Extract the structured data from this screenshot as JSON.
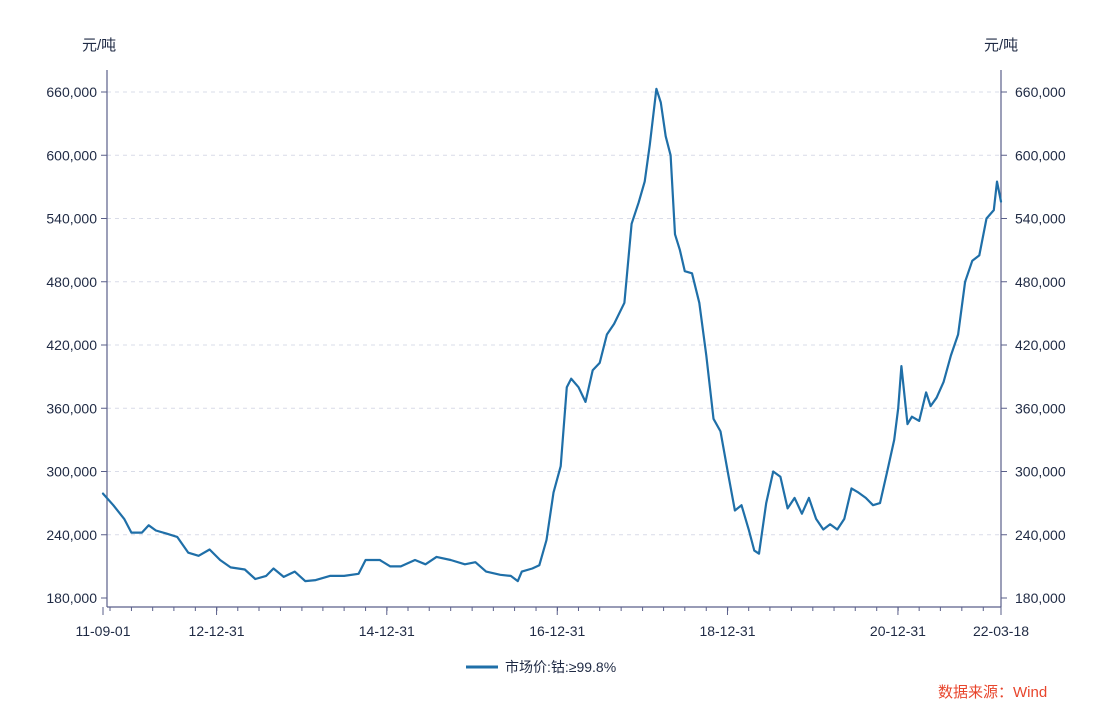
{
  "colors": {
    "series": "#1f6fa8",
    "axis": "#5a5f8a",
    "grid": "#d9dce8",
    "text": "#1f2a44",
    "source": "#e8452c"
  },
  "chart_data": {
    "type": "line",
    "title": "",
    "ylabel_left": "元/吨",
    "ylabel_right": "元/吨",
    "ylim": [
      175000,
      680000
    ],
    "y_ticks": [
      180000,
      240000,
      300000,
      360000,
      420000,
      480000,
      540000,
      600000,
      660000
    ],
    "y_tick_labels": [
      "180,000",
      "240,000",
      "300,000",
      "360,000",
      "420,000",
      "480,000",
      "540,000",
      "600,000",
      "660,000"
    ],
    "xlim": [
      "2011-09-01",
      "2022-03-18"
    ],
    "x_ticks": [
      "2011-09-01",
      "2012-12-31",
      "2014-12-31",
      "2016-12-31",
      "2018-12-31",
      "2020-12-31",
      "2022-03-18"
    ],
    "x_tick_labels": [
      "11-09-01",
      "12-12-31",
      "14-12-31",
      "16-12-31",
      "18-12-31",
      "20-12-31",
      "22-03-18"
    ],
    "grid": "horizontal-dashed",
    "legend": "bottom-center",
    "series": [
      {
        "name": "市场价:钴:≥99.8%",
        "points": [
          [
            "2011-09-01",
            279000
          ],
          [
            "2011-10-15",
            268000
          ],
          [
            "2011-12-01",
            255000
          ],
          [
            "2012-01-01",
            242000
          ],
          [
            "2012-02-15",
            242000
          ],
          [
            "2012-03-15",
            249000
          ],
          [
            "2012-04-15",
            244000
          ],
          [
            "2012-06-01",
            241000
          ],
          [
            "2012-07-15",
            238000
          ],
          [
            "2012-09-01",
            223000
          ],
          [
            "2012-10-15",
            220000
          ],
          [
            "2012-12-01",
            226000
          ],
          [
            "2013-01-15",
            216000
          ],
          [
            "2013-03-01",
            209000
          ],
          [
            "2013-05-01",
            207000
          ],
          [
            "2013-06-15",
            198000
          ],
          [
            "2013-08-01",
            201000
          ],
          [
            "2013-09-01",
            208000
          ],
          [
            "2013-10-15",
            200000
          ],
          [
            "2013-12-01",
            205000
          ],
          [
            "2014-01-15",
            196000
          ],
          [
            "2014-03-01",
            197000
          ],
          [
            "2014-05-01",
            201000
          ],
          [
            "2014-07-01",
            201000
          ],
          [
            "2014-09-01",
            203000
          ],
          [
            "2014-10-01",
            216000
          ],
          [
            "2014-12-01",
            216000
          ],
          [
            "2015-01-15",
            210000
          ],
          [
            "2015-03-01",
            210000
          ],
          [
            "2015-05-01",
            216000
          ],
          [
            "2015-06-15",
            212000
          ],
          [
            "2015-08-01",
            219000
          ],
          [
            "2015-10-01",
            216000
          ],
          [
            "2015-12-01",
            212000
          ],
          [
            "2016-01-15",
            214000
          ],
          [
            "2016-03-01",
            205000
          ],
          [
            "2016-05-01",
            202000
          ],
          [
            "2016-06-15",
            201000
          ],
          [
            "2016-07-15",
            196000
          ],
          [
            "2016-08-01",
            205000
          ],
          [
            "2016-09-15",
            208000
          ],
          [
            "2016-10-15",
            211000
          ],
          [
            "2016-11-15",
            235000
          ],
          [
            "2016-12-15",
            280000
          ],
          [
            "2017-01-15",
            305000
          ],
          [
            "2017-02-10",
            380000
          ],
          [
            "2017-03-01",
            388000
          ],
          [
            "2017-04-01",
            380000
          ],
          [
            "2017-05-01",
            366000
          ],
          [
            "2017-06-01",
            396000
          ],
          [
            "2017-07-01",
            403000
          ],
          [
            "2017-08-01",
            430000
          ],
          [
            "2017-09-01",
            440000
          ],
          [
            "2017-10-15",
            460000
          ],
          [
            "2017-11-15",
            535000
          ],
          [
            "2017-12-15",
            555000
          ],
          [
            "2018-01-10",
            575000
          ],
          [
            "2018-02-01",
            610000
          ],
          [
            "2018-03-01",
            663000
          ],
          [
            "2018-03-20",
            650000
          ],
          [
            "2018-04-10",
            618000
          ],
          [
            "2018-05-01",
            600000
          ],
          [
            "2018-05-20",
            525000
          ],
          [
            "2018-06-10",
            510000
          ],
          [
            "2018-07-01",
            490000
          ],
          [
            "2018-08-01",
            488000
          ],
          [
            "2018-09-01",
            460000
          ],
          [
            "2018-10-01",
            410000
          ],
          [
            "2018-11-01",
            350000
          ],
          [
            "2018-12-01",
            338000
          ],
          [
            "2019-01-01",
            300000
          ],
          [
            "2019-02-01",
            263000
          ],
          [
            "2019-03-01",
            268000
          ],
          [
            "2019-04-01",
            245000
          ],
          [
            "2019-04-25",
            225000
          ],
          [
            "2019-05-15",
            222000
          ],
          [
            "2019-06-15",
            270000
          ],
          [
            "2019-07-15",
            300000
          ],
          [
            "2019-08-15",
            295000
          ],
          [
            "2019-09-15",
            265000
          ],
          [
            "2019-10-15",
            275000
          ],
          [
            "2019-11-15",
            260000
          ],
          [
            "2019-12-15",
            275000
          ],
          [
            "2020-01-15",
            255000
          ],
          [
            "2020-02-15",
            245000
          ],
          [
            "2020-03-15",
            250000
          ],
          [
            "2020-04-15",
            245000
          ],
          [
            "2020-05-15",
            255000
          ],
          [
            "2020-06-15",
            284000
          ],
          [
            "2020-07-15",
            280000
          ],
          [
            "2020-08-15",
            275000
          ],
          [
            "2020-09-15",
            268000
          ],
          [
            "2020-10-15",
            270000
          ],
          [
            "2020-11-15",
            300000
          ],
          [
            "2020-12-15",
            330000
          ],
          [
            "2021-01-01",
            360000
          ],
          [
            "2021-01-15",
            400000
          ],
          [
            "2021-02-10",
            345000
          ],
          [
            "2021-03-01",
            352000
          ],
          [
            "2021-04-01",
            348000
          ],
          [
            "2021-05-01",
            375000
          ],
          [
            "2021-05-20",
            362000
          ],
          [
            "2021-06-15",
            370000
          ],
          [
            "2021-07-15",
            385000
          ],
          [
            "2021-08-15",
            410000
          ],
          [
            "2021-09-15",
            430000
          ],
          [
            "2021-10-15",
            480000
          ],
          [
            "2021-11-15",
            500000
          ],
          [
            "2021-12-15",
            505000
          ],
          [
            "2022-01-15",
            540000
          ],
          [
            "2022-02-15",
            548000
          ],
          [
            "2022-03-01",
            575000
          ],
          [
            "2022-03-18",
            556000
          ]
        ]
      }
    ]
  },
  "legend": {
    "label": "市场价:钴:≥99.8%"
  },
  "source": {
    "label": "数据来源：Wind"
  }
}
